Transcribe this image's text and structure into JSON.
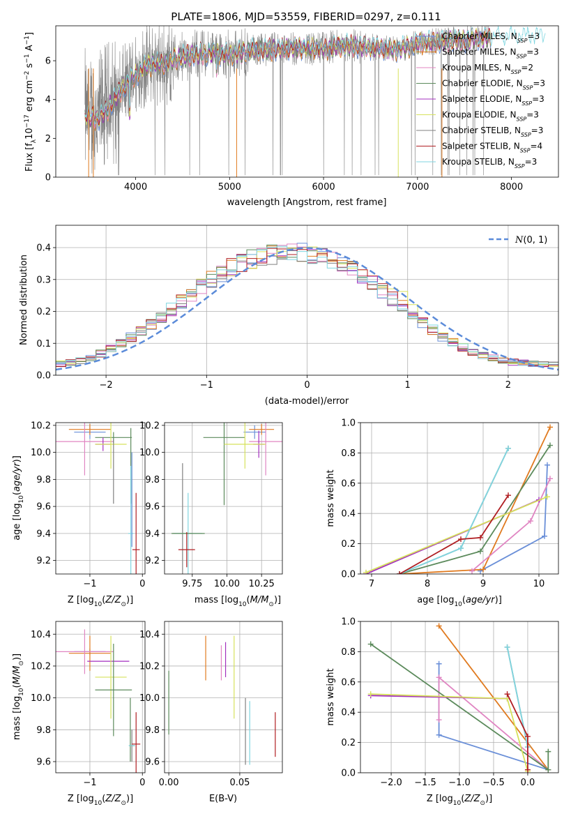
{
  "title": "PLATE=1806, MJD=53559, FIBERID=0297, z=0.111",
  "colors": {
    "Chabrier MILES": "#6a8fd8",
    "Salpeter MILES": "#e07a1f",
    "Kroupa MILES": "#e085c2",
    "Chabrier ELODIE": "#5b8a5b",
    "Salpeter ELODIE": "#a32fbf",
    "Kroupa ELODIE": "#d6e25c",
    "Chabrier STELIB": "#808080",
    "Salpeter STELIB": "#b01e22",
    "Kroupa STELIB": "#7fd6e0",
    "normal": "#5b8bd9"
  },
  "chart_data": [
    {
      "type": "line",
      "xlabel": "wavelength [Angstrom, rest frame]",
      "ylabel": "Flux [fλ10⁻¹⁷ erg cm⁻² s⁻¹ A⁻¹]",
      "xlim": [
        3150,
        8500
      ],
      "ylim": [
        0,
        7.8
      ],
      "xticks": [
        4000,
        5000,
        6000,
        7000,
        8000
      ],
      "yticks": [
        0,
        2,
        4,
        6
      ],
      "legend_loc": "upper right",
      "legend": [
        {
          "name": "Chabrier MILES",
          "label": "Chabrier MILES, N",
          "sub": "SSP",
          "suffix": "=3"
        },
        {
          "name": "Salpeter MILES",
          "label": "Salpeter MILES, N",
          "sub": "SSP",
          "suffix": "=3"
        },
        {
          "name": "Kroupa MILES",
          "label": "Kroupa MILES, N",
          "sub": "SSP",
          "suffix": "=2"
        },
        {
          "name": "Chabrier ELODIE",
          "label": "Chabrier ELODIE, N",
          "sub": "SSP",
          "suffix": "=3"
        },
        {
          "name": "Salpeter ELODIE",
          "label": "Salpeter ELODIE, N",
          "sub": "SSP",
          "suffix": "=3"
        },
        {
          "name": "Kroupa ELODIE",
          "label": "Kroupa ELODIE, N",
          "sub": "SSP",
          "suffix": "=3"
        },
        {
          "name": "Chabrier STELIB",
          "label": "Chabrier STELIB, N",
          "sub": "SSP",
          "suffix": "=3"
        },
        {
          "name": "Salpeter STELIB",
          "label": "Salpeter STELIB, N",
          "sub": "SSP",
          "suffix": "=4"
        },
        {
          "name": "Kroupa STELIB",
          "label": "Kroupa STELIB, N",
          "sub": "SSP",
          "suffix": "=3"
        }
      ],
      "continuum": {
        "x": [
          3450,
          3600,
          3700,
          3800,
          3900,
          4000,
          4100,
          4200,
          4300,
          4400,
          4600,
          4800,
          5000,
          5200,
          5500,
          5800,
          6000,
          6200,
          6500,
          6800,
          7000,
          7200,
          7500,
          7700
        ],
        "y": [
          3.2,
          3.0,
          3.5,
          4.2,
          4.8,
          5.3,
          5.7,
          5.9,
          5.8,
          6.1,
          6.3,
          6.4,
          6.3,
          6.5,
          6.6,
          6.7,
          6.6,
          6.8,
          6.7,
          6.6,
          6.9,
          7.0,
          7.1,
          7.2
        ]
      },
      "data_range": [
        3460,
        7780
      ],
      "model_range": [
        3460,
        8360
      ]
    },
    {
      "type": "bar",
      "xlabel": "(data-model)/error",
      "ylabel": "Normed distribution",
      "xlim": [
        -2.5,
        2.5
      ],
      "ylim": [
        0,
        0.47
      ],
      "xticks": [
        -2,
        -1,
        0,
        1,
        2
      ],
      "yticks": [
        0.0,
        0.1,
        0.2,
        0.3,
        0.4
      ],
      "bin_width": 0.1,
      "histogram_center": [
        0.036,
        0.04,
        0.046,
        0.056,
        0.068,
        0.083,
        0.1,
        0.118,
        0.138,
        0.16,
        0.182,
        0.206,
        0.23,
        0.254,
        0.278,
        0.3,
        0.32,
        0.338,
        0.352,
        0.364,
        0.372,
        0.378,
        0.382,
        0.384,
        0.383,
        0.38,
        0.374,
        0.364,
        0.35,
        0.333,
        0.313,
        0.29,
        0.266,
        0.24,
        0.214,
        0.19,
        0.166,
        0.143,
        0.122,
        0.103,
        0.087,
        0.074,
        0.062,
        0.053,
        0.046,
        0.041,
        0.038,
        0.036,
        0.034,
        0.032
      ],
      "normal_label": "N(0,1)",
      "legend_loc": "upper right"
    },
    {
      "type": "scatter",
      "xlabel": "Z [log10(Z/Z⊙)]",
      "ylabel": "age  [log10(age/yr)]",
      "xlim": [
        -1.65,
        0.05
      ],
      "ylim": [
        9.1,
        10.22
      ],
      "xticks": [
        -1,
        0
      ],
      "yticks": [
        9.2,
        9.4,
        9.6,
        9.8,
        10.0,
        10.2
      ],
      "points": [
        {
          "series": "Chabrier MILES",
          "x": -1.0,
          "y": 10.15,
          "xerr": 0.3,
          "yerr": 0.05
        },
        {
          "series": "Salpeter MILES",
          "x": -1.0,
          "y": 10.17,
          "xerr": 0.4,
          "yerr": 0.04
        },
        {
          "series": "Kroupa MILES",
          "x": -1.1,
          "y": 10.08,
          "xerr": 0.55,
          "yerr": 0.25
        },
        {
          "series": "Chabrier ELODIE",
          "x": -0.55,
          "y": 10.11,
          "xerr": 0.35,
          "yerr": 0.04
        },
        {
          "series": "Salpeter ELODIE",
          "x": -0.75,
          "y": 10.06,
          "xerr": 0.15,
          "yerr": 0.05
        },
        {
          "series": "Kroupa ELODIE",
          "x": -0.6,
          "y": 10.06,
          "xerr": 0.3,
          "yerr": 0.18
        },
        {
          "series": "Chabrier STELIB",
          "x": -0.55,
          "y": 9.86,
          "xerr": 0.0,
          "yerr": 0.24
        },
        {
          "series": "Chabrier ELODIE",
          "x": -0.22,
          "y": 9.9,
          "xerr": 0.0,
          "yerr": 0.28
        },
        {
          "series": "Kroupa STELIB",
          "x": -0.22,
          "y": 9.4,
          "xerr": 0.05,
          "yerr": 0.5
        },
        {
          "series": "Chabrier MILES",
          "x": -0.2,
          "y": 9.65,
          "xerr": 0.0,
          "yerr": 0.35
        },
        {
          "series": "Salpeter STELIB",
          "x": -0.12,
          "y": 9.28,
          "xerr": 0.07,
          "yerr": 0.42
        }
      ]
    },
    {
      "type": "scatter",
      "xlabel": "mass [log10(M/M⊙)]",
      "ylabel": "",
      "xlim": [
        9.55,
        10.4
      ],
      "ylim": [
        9.1,
        10.22
      ],
      "xticks": [
        9.75,
        10.0,
        10.25
      ],
      "xticklabels": [
        "9.75",
        "10.00",
        "10.25"
      ],
      "yticks": [
        9.2,
        9.4,
        9.6,
        9.8,
        10.0,
        10.2
      ],
      "points": [
        {
          "series": "Chabrier MILES",
          "x": 10.2,
          "y": 10.15,
          "xerr": 0.08,
          "yerr": 0.05
        },
        {
          "series": "Salpeter MILES",
          "x": 10.25,
          "y": 10.17,
          "xerr": 0.09,
          "yerr": 0.04
        },
        {
          "series": "Kroupa MILES",
          "x": 10.28,
          "y": 10.08,
          "xerr": 0.12,
          "yerr": 0.25
        },
        {
          "series": "Chabrier ELODIE",
          "x": 9.98,
          "y": 10.11,
          "xerr": 0.15,
          "yerr": 0.5
        },
        {
          "series": "Salpeter ELODIE",
          "x": 10.23,
          "y": 10.06,
          "xerr": 0.04,
          "yerr": 0.1
        },
        {
          "series": "Kroupa ELODIE",
          "x": 10.13,
          "y": 10.06,
          "xerr": 0.15,
          "yerr": 0.18
        },
        {
          "series": "Chabrier STELIB",
          "x": 9.68,
          "y": 9.4,
          "xerr": 0.07,
          "yerr": 0.52
        },
        {
          "series": "Kroupa STELIB",
          "x": 9.72,
          "y": 9.4,
          "xerr": 0.1,
          "yerr": 0.3
        },
        {
          "series": "Chabrier ELODIE",
          "x": 9.72,
          "y": 9.4,
          "xerr": 0.12,
          "yerr": 0.0
        },
        {
          "series": "Salpeter STELIB",
          "x": 9.71,
          "y": 9.28,
          "xerr": 0.06,
          "yerr": 0.13
        }
      ]
    },
    {
      "type": "line",
      "xlabel": "age  [log10(age/yr)]",
      "ylabel": "mass weight",
      "xlim": [
        6.8,
        10.35
      ],
      "ylim": [
        0.0,
        1.0
      ],
      "xticks": [
        7,
        8,
        9,
        10
      ],
      "yticks": [
        0.0,
        0.2,
        0.4,
        0.6,
        0.8,
        1.0
      ],
      "series": [
        {
          "name": "Chabrier MILES",
          "x": [
            8.95,
            10.1,
            10.15
          ],
          "y": [
            0.02,
            0.25,
            0.72
          ]
        },
        {
          "name": "Salpeter MILES",
          "x": [
            7.5,
            9.0,
            10.2
          ],
          "y": [
            0.0,
            0.03,
            0.97
          ]
        },
        {
          "name": "Kroupa MILES",
          "x": [
            8.8,
            9.85,
            10.2
          ],
          "y": [
            0.02,
            0.35,
            0.63
          ]
        },
        {
          "name": "Chabrier ELODIE",
          "x": [
            7.5,
            8.95,
            10.2
          ],
          "y": [
            0.0,
            0.15,
            0.85
          ]
        },
        {
          "name": "Salpeter ELODIE",
          "x": [
            6.9,
            10.0
          ],
          "y": [
            0.0,
            0.49
          ]
        },
        {
          "name": "Kroupa ELODIE",
          "x": [
            6.9,
            10.15
          ],
          "y": [
            0.01,
            0.51
          ]
        },
        {
          "name": "Chabrier STELIB",
          "x": [
            7.5,
            8.6,
            9.45
          ],
          "y": [
            0.0,
            0.17,
            0.83
          ]
        },
        {
          "name": "Kroupa STELIB",
          "x": [
            7.5,
            8.6,
            9.45
          ],
          "y": [
            0.0,
            0.17,
            0.83
          ]
        },
        {
          "name": "Salpeter STELIB",
          "x": [
            7.5,
            8.6,
            8.95,
            9.45
          ],
          "y": [
            0.0,
            0.23,
            0.24,
            0.52
          ]
        }
      ]
    },
    {
      "type": "scatter",
      "xlabel": "Z [log10(Z/Z⊙)]",
      "ylabel": "mass [log10(M/M⊙)]",
      "xlim": [
        -1.65,
        0.05
      ],
      "ylim": [
        9.53,
        10.48
      ],
      "xticks": [
        -1,
        0
      ],
      "yticks": [
        9.6,
        9.8,
        10.0,
        10.2,
        10.4
      ],
      "points": [
        {
          "series": "Chabrier MILES",
          "x": -1.0,
          "y": 10.29,
          "xerr": 0.3,
          "yerr": 0.02
        },
        {
          "series": "Salpeter MILES",
          "x": -1.0,
          "y": 10.28,
          "xerr": 0.4,
          "yerr": 0.11
        },
        {
          "series": "Kroupa MILES",
          "x": -1.1,
          "y": 10.29,
          "xerr": 0.55,
          "yerr": 0.14
        },
        {
          "series": "Salpeter ELODIE",
          "x": -0.65,
          "y": 10.23,
          "xerr": 0.4,
          "yerr": 0.0
        },
        {
          "series": "Kroupa ELODIE",
          "x": -0.6,
          "y": 10.13,
          "xerr": 0.3,
          "yerr": 0.26
        },
        {
          "series": "Chabrier ELODIE",
          "x": -0.55,
          "y": 10.05,
          "xerr": 0.35,
          "yerr": 0.29
        },
        {
          "series": "Chabrier STELIB",
          "x": -0.2,
          "y": 9.7,
          "xerr": 0.05,
          "yerr": 0.1
        },
        {
          "series": "Chabrier ELODIE",
          "x": -0.23,
          "y": 9.8,
          "xerr": 0.0,
          "yerr": 0.2
        },
        {
          "series": "Kroupa STELIB",
          "x": -0.2,
          "y": 9.7,
          "xerr": 0.06,
          "yerr": 0.0
        },
        {
          "series": "Salpeter STELIB",
          "x": -0.12,
          "y": 9.71,
          "xerr": 0.08,
          "yerr": 0.2
        }
      ]
    },
    {
      "type": "scatter",
      "xlabel": "E(B-V)",
      "ylabel": "",
      "xlim": [
        -0.003,
        0.08
      ],
      "ylim": [
        9.53,
        10.48
      ],
      "xticks": [
        0.0,
        0.05
      ],
      "xticklabels": [
        "0.00",
        "0.05"
      ],
      "yticks": [
        9.6,
        9.8,
        10.0,
        10.2,
        10.4
      ],
      "points": [
        {
          "series": "Chabrier ELODIE",
          "x": 0.0,
          "y": 9.97,
          "xerr": 0.0,
          "yerr": 0.2
        },
        {
          "series": "Salpeter MILES",
          "x": 0.026,
          "y": 10.25,
          "xerr": 0.0,
          "yerr": 0.14
        },
        {
          "series": "Kroupa MILES",
          "x": 0.037,
          "y": 10.22,
          "xerr": 0.0,
          "yerr": 0.11
        },
        {
          "series": "Salpeter ELODIE",
          "x": 0.04,
          "y": 10.24,
          "xerr": 0.0,
          "yerr": 0.11
        },
        {
          "series": "Kroupa ELODIE",
          "x": 0.046,
          "y": 10.13,
          "xerr": 0.0,
          "yerr": 0.26
        },
        {
          "series": "Chabrier STELIB",
          "x": 0.054,
          "y": 9.79,
          "xerr": 0.0,
          "yerr": 0.21
        },
        {
          "series": "Kroupa STELIB",
          "x": 0.057,
          "y": 9.78,
          "xerr": 0.0,
          "yerr": 0.2
        },
        {
          "series": "Salpeter STELIB",
          "x": 0.075,
          "y": 9.77,
          "xerr": 0.0,
          "yerr": 0.14
        }
      ]
    },
    {
      "type": "line",
      "xlabel": "Z [log10(Z/Z⊙)]",
      "ylabel": "mass weight",
      "xlim": [
        -2.45,
        0.45
      ],
      "ylim": [
        0.0,
        1.0
      ],
      "xticks": [
        -2.0,
        -1.5,
        -1.0,
        -0.5,
        0.0
      ],
      "xticklabels": [
        "−2.0",
        "−1.5",
        "−1.0",
        "−0.5",
        "0.0"
      ],
      "yticks": [
        0.0,
        0.2,
        0.4,
        0.6,
        0.8,
        1.0
      ],
      "series": [
        {
          "name": "Chabrier MILES",
          "x": [
            -1.3,
            -1.3,
            0.3
          ],
          "y": [
            0.72,
            0.25,
            0.02
          ]
        },
        {
          "name": "Salpeter MILES",
          "x": [
            -1.3,
            0.3
          ],
          "y": [
            0.97,
            0.02
          ]
        },
        {
          "name": "Kroupa MILES",
          "x": [
            -1.3,
            -1.3,
            0.3
          ],
          "y": [
            0.35,
            0.63,
            0.02
          ]
        },
        {
          "name": "Chabrier ELODIE",
          "x": [
            -2.3,
            0.3,
            0.3
          ],
          "y": [
            0.85,
            0.02,
            0.14
          ]
        },
        {
          "name": "Salpeter ELODIE",
          "x": [
            -2.3,
            -0.3
          ],
          "y": [
            0.51,
            0.49
          ]
        },
        {
          "name": "Kroupa ELODIE",
          "x": [
            -2.3,
            -0.3,
            0.0
          ],
          "y": [
            0.52,
            0.49,
            0.01
          ]
        },
        {
          "name": "Chabrier STELIB",
          "x": [
            -0.3,
            0.0
          ],
          "y": [
            0.83,
            0.17
          ]
        },
        {
          "name": "Kroupa STELIB",
          "x": [
            -0.3,
            0.0
          ],
          "y": [
            0.83,
            0.17
          ]
        },
        {
          "name": "Salpeter STELIB",
          "x": [
            -0.3,
            0.0,
            0.0
          ],
          "y": [
            0.52,
            0.24,
            0.02
          ]
        }
      ]
    }
  ]
}
